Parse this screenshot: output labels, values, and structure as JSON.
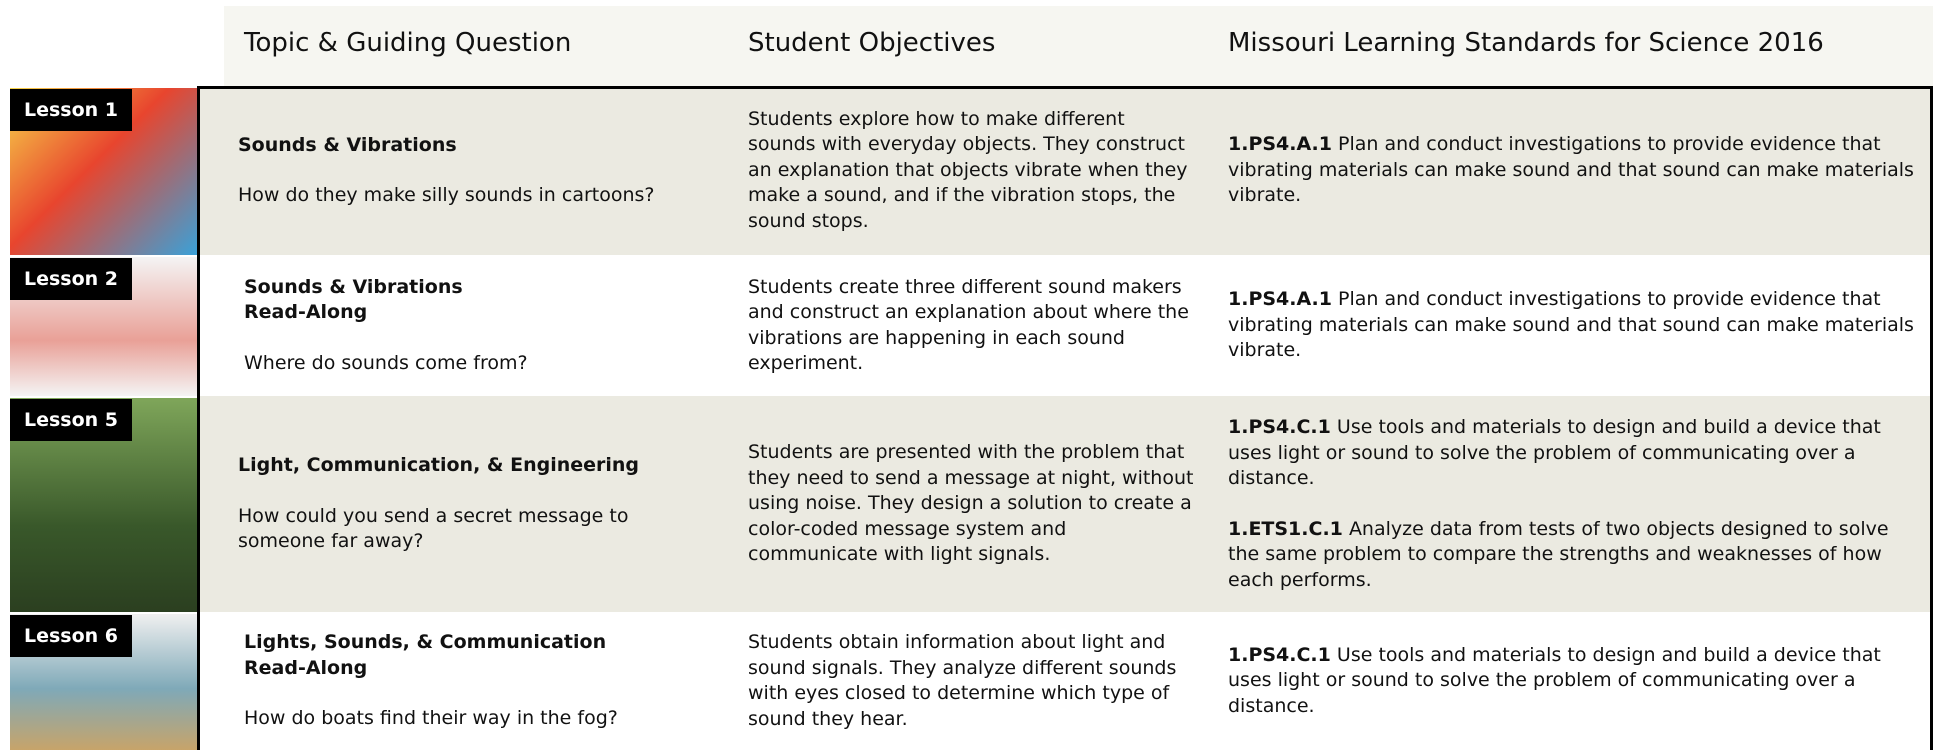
{
  "header": {
    "columns": [
      "Topic & Guiding Question",
      "Student Objectives",
      "Missouri Learning  Standards for Science 2016"
    ]
  },
  "rows": [
    {
      "lesson": "Lesson 1",
      "title": [
        "Sounds & Vibrations"
      ],
      "question": "How do they make silly sounds in cartoons?",
      "objective": "Students explore how to make different sounds with everyday objects. They construct an explanation that objects vibrate when they make a sound, and if the vibration stops, the sound stops.",
      "standards": [
        {
          "code": "1.PS4.A.1",
          "text": "Plan and conduct investigations to provide evidence that vibrating materials can make sound and that sound can make materials vibrate."
        }
      ]
    },
    {
      "lesson": "Lesson 2",
      "title": [
        "Sounds & Vibrations",
        "Read-Along"
      ],
      "question": "Where do sounds come from?",
      "objective": "Students create three different sound makers and construct an explanation about where the vibrations are happening in each sound experiment.",
      "standards": [
        {
          "code": "1.PS4.A.1",
          "text": "Plan and conduct investigations to provide evidence that vibrating materials can make sound and that sound can make materials vibrate."
        }
      ]
    },
    {
      "lesson": "Lesson 5",
      "title": [
        "Light, Communication, & Engineering"
      ],
      "question": "How could you send a secret message to someone far away?",
      "objective": "Students are presented with the problem that they need to send a message at night, without using noise. They design a solution to create a color-coded message system and communicate with light signals.",
      "standards": [
        {
          "code": "1.PS4.C.1",
          "text": "Use tools and materials to design and build a device that uses light or sound to solve the problem of communicating over a distance."
        },
        {
          "code": "1.ETS1.C.1",
          "text": "Analyze data from tests of two objects designed to solve the same problem to compare the strengths and weaknesses of how each performs."
        }
      ]
    },
    {
      "lesson": "Lesson 6",
      "title": [
        "Lights, Sounds, & Communication",
        "Read-Along"
      ],
      "question": "How do boats find their way in the fog?",
      "objective": "Students obtain information about light and sound signals. They analyze different sounds with eyes closed to determine which type of sound they hear.",
      "standards": [
        {
          "code": "1.PS4.C.1",
          "text": "Use tools and materials to design and build a device that uses light or sound to solve the problem of communicating over a distance."
        }
      ]
    }
  ]
}
